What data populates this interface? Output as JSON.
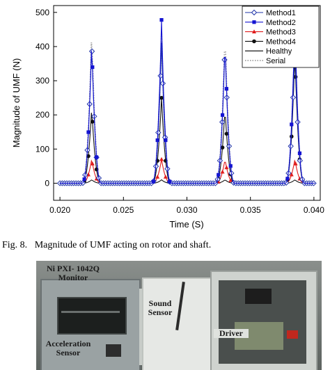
{
  "chart_data": {
    "type": "line",
    "xlabel": "Time (S)",
    "ylabel": "Magnitude of UMF (N)",
    "xlim": [
      0.0195,
      0.0405
    ],
    "ylim": [
      -50,
      520
    ],
    "x_ticks": [
      "0.020",
      "0.025",
      "0.030",
      "0.035",
      "0.040"
    ],
    "y_ticks": [
      "0",
      "100",
      "200",
      "300",
      "400",
      "500"
    ],
    "legend_position": "top-right",
    "peak_times": [
      0.0225,
      0.028,
      0.033,
      0.0385
    ],
    "series": [
      {
        "name": "Method1",
        "color": "#1f33a8",
        "marker": "diamond-open",
        "peaks": [
          412,
          412,
          412,
          412
        ]
      },
      {
        "name": "Method2",
        "color": "#1414d2",
        "marker": "square",
        "peaks": [
          415,
          478,
          420,
          478
        ]
      },
      {
        "name": "Method3",
        "color": "#e01b1b",
        "marker": "triangle",
        "peaks": [
          70,
          70,
          70,
          70
        ]
      },
      {
        "name": "Method4",
        "color": "#111111",
        "marker": "circle",
        "peaks": [
          220,
          250,
          220,
          380
        ]
      },
      {
        "name": "Healthy",
        "color": "#000000",
        "marker": "line",
        "peaks": [
          10,
          10,
          10,
          10
        ]
      },
      {
        "name": "Serial",
        "color": "#aaaaaa",
        "marker": "dotted",
        "peaks": [
          440,
          440,
          440,
          440
        ]
      }
    ]
  },
  "caption": {
    "label": "Fig. 8.",
    "text": "Magnitude of UMF acting on rotor and shaft."
  },
  "photo": {
    "labels": {
      "monitor": "Ni PXI- 1042Q Monitor",
      "sound": "Sound Sensor",
      "driver": "Driver",
      "acceleration": "Acceleration Sensor"
    }
  }
}
